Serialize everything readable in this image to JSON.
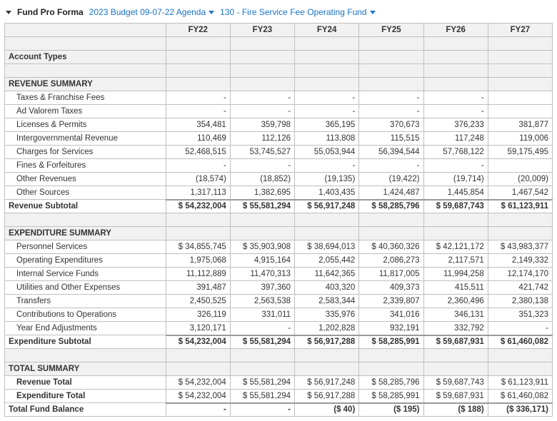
{
  "header": {
    "title": "Fund Pro Forma",
    "budget_dropdown": "2023 Budget 09-07-22 Agenda",
    "fund_dropdown": "130 - Fire Service Fee Operating Fund"
  },
  "columns": [
    "FY22",
    "FY23",
    "FY24",
    "FY25",
    "FY26",
    "FY27"
  ],
  "section_account_types": "Account Types",
  "revenue": {
    "heading": "REVENUE SUMMARY",
    "rows": [
      {
        "label": "Taxes & Franchise Fees",
        "vals": [
          "-",
          "-",
          "-",
          "-",
          "-",
          ""
        ]
      },
      {
        "label": "Ad Valorem Taxes",
        "vals": [
          "-",
          "-",
          "-",
          "-",
          "-",
          ""
        ]
      },
      {
        "label": "Licenses & Permits",
        "vals": [
          "354,481",
          "359,798",
          "365,195",
          "370,673",
          "376,233",
          "381,877"
        ]
      },
      {
        "label": "Intergovernmental Revenue",
        "vals": [
          "110,469",
          "112,126",
          "113,808",
          "115,515",
          "117,248",
          "119,006"
        ]
      },
      {
        "label": "Charges for Services",
        "vals": [
          "52,468,515",
          "53,745,527",
          "55,053,944",
          "56,394,544",
          "57,768,122",
          "59,175,495"
        ]
      },
      {
        "label": "Fines & Forfeitures",
        "vals": [
          "-",
          "-",
          "-",
          "-",
          "-",
          ""
        ]
      },
      {
        "label": "Other Revenues",
        "vals": [
          "(18,574)",
          "(18,852)",
          "(19,135)",
          "(19,422)",
          "(19,714)",
          "(20,009)"
        ]
      },
      {
        "label": "Other Sources",
        "vals": [
          "1,317,113",
          "1,382,695",
          "1,403,435",
          "1,424,487",
          "1,445,854",
          "1,467,542"
        ]
      }
    ],
    "subtotal": {
      "label": "Revenue Subtotal",
      "vals": [
        "$ 54,232,004",
        "$ 55,581,294",
        "$ 56,917,248",
        "$ 58,285,796",
        "$ 59,687,743",
        "$ 61,123,911"
      ]
    }
  },
  "expenditure": {
    "heading": "EXPENDITURE SUMMARY",
    "rows": [
      {
        "label": "Personnel Services",
        "vals": [
          "$ 34,855,745",
          "$ 35,903,908",
          "$ 38,694,013",
          "$ 40,360,326",
          "$ 42,121,172",
          "$ 43,983,377"
        ]
      },
      {
        "label": "Operating Expenditures",
        "vals": [
          "1,975,068",
          "4,915,164",
          "2,055,442",
          "2,086,273",
          "2,117,571",
          "2,149,332"
        ]
      },
      {
        "label": "Internal Service Funds",
        "vals": [
          "11,112,889",
          "11,470,313",
          "11,642,365",
          "11,817,005",
          "11,994,258",
          "12,174,170"
        ]
      },
      {
        "label": "Utilities and Other Expenses",
        "vals": [
          "391,487",
          "397,360",
          "403,320",
          "409,373",
          "415,511",
          "421,742"
        ]
      },
      {
        "label": "Transfers",
        "vals": [
          "2,450,525",
          "2,563,538",
          "2,583,344",
          "2,339,807",
          "2,360,496",
          "2,380,138"
        ]
      },
      {
        "label": "Contributions to Operations",
        "vals": [
          "326,119",
          "331,011",
          "335,976",
          "341,016",
          "346,131",
          "351,323"
        ]
      },
      {
        "label": "Year End Adjustments",
        "vals": [
          "3,120,171",
          "-",
          "1,202,828",
          "932,191",
          "332,792",
          "-"
        ]
      }
    ],
    "subtotal": {
      "label": "Expenditure Subtotal",
      "vals": [
        "$ 54,232,004",
        "$ 55,581,294",
        "$ 56,917,288",
        "$ 58,285,991",
        "$ 59,687,931",
        "$ 61,460,082"
      ]
    }
  },
  "total": {
    "heading": "TOTAL SUMMARY",
    "revenue_total": {
      "label": "Revenue Total",
      "vals": [
        "$ 54,232,004",
        "$ 55,581,294",
        "$ 56,917,248",
        "$ 58,285,796",
        "$ 59,687,743",
        "$ 61,123,911"
      ]
    },
    "expenditure_total": {
      "label": "Expenditure Total",
      "vals": [
        "$ 54,232,004",
        "$ 55,581,294",
        "$ 56,917,288",
        "$ 58,285,991",
        "$ 59,687,931",
        "$ 61,460,082"
      ]
    },
    "balance": {
      "label": "Total Fund Balance",
      "vals": [
        "-",
        "-",
        "($ 40)",
        "($ 195)",
        "($ 188)",
        "($ 336,171)"
      ]
    }
  }
}
